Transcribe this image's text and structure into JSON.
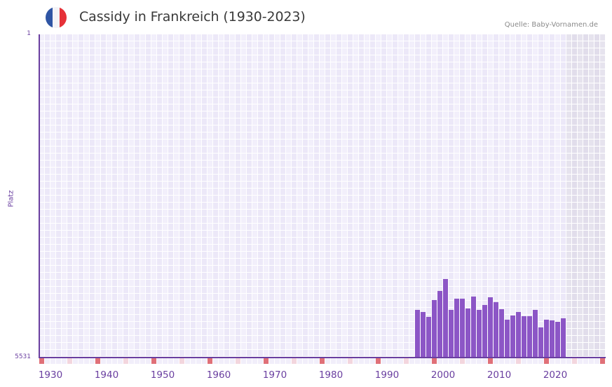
{
  "header": {
    "title": "Cassidy in Frankreich (1930-2023)",
    "source": "Quelle: Baby-Vornamen.de",
    "flag_icon": "france-flag-icon",
    "flag_colors": [
      "#2f55a4",
      "#f3f3f7",
      "#e63138"
    ]
  },
  "axis": {
    "y_top_label": "1",
    "y_bottom_label": "5531",
    "y_title": "Platz",
    "x_labels": [
      "1930",
      "1940",
      "1950",
      "1960",
      "1970",
      "1980",
      "1990",
      "2000",
      "2010",
      "2020"
    ]
  },
  "colors": {
    "bar": "#8c56c6",
    "axis": "#6a3fa0",
    "grid_a": "#f2effb",
    "grid_b": "#ece8f8",
    "grid_shaded_a": "#e6e3ee",
    "grid_shaded_b": "#e1ddeb",
    "tick_major": "#e07078",
    "tick_minor": "#f3d6de",
    "tick_plain": "#f1eefa"
  },
  "chart_data": {
    "type": "bar",
    "title": "Cassidy in Frankreich (1930-2023)",
    "xlabel": "",
    "ylabel": "Platz",
    "ylim": [
      5531,
      1
    ],
    "y_inverted": true,
    "grid": true,
    "x_range": [
      1928,
      2028
    ],
    "shaded_from_year": 2022,
    "categories": [
      1995,
      1996,
      1997,
      1998,
      1999,
      2000,
      2001,
      2002,
      2003,
      2004,
      2005,
      2006,
      2007,
      2008,
      2009,
      2010,
      2011,
      2012,
      2013,
      2014,
      2015,
      2016,
      2017,
      2018,
      2019,
      2020,
      2021
    ],
    "values": [
      4712,
      4748,
      4832,
      4547,
      4388,
      4184,
      4712,
      4520,
      4520,
      4691,
      4484,
      4712,
      4628,
      4496,
      4580,
      4703,
      4880,
      4808,
      4748,
      4820,
      4820,
      4712,
      5012,
      4880,
      4892,
      4916,
      4856
    ]
  }
}
